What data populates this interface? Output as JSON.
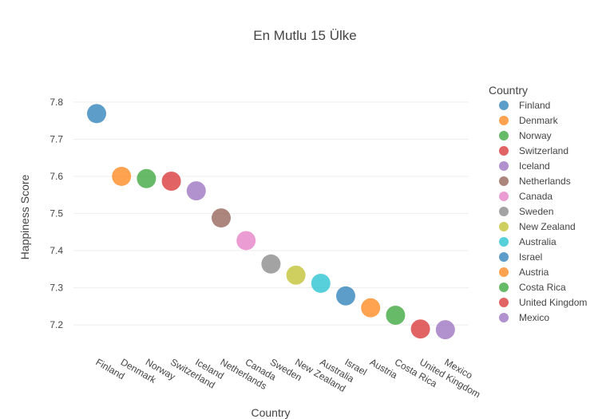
{
  "chart_data": {
    "type": "scatter",
    "title": "En Mutlu 15 Ülke",
    "xlabel": "Country",
    "ylabel": "Happiness Score",
    "legend_title": "Country",
    "legend_position": "right",
    "grid": true,
    "ylim": [
      7.14,
      7.86
    ],
    "yticks": [
      7.2,
      7.3,
      7.4,
      7.5,
      7.6,
      7.7,
      7.8
    ],
    "categories": [
      "Finland",
      "Denmark",
      "Norway",
      "Switzerland",
      "Iceland",
      "Netherlands",
      "Canada",
      "Sweden",
      "New Zealand",
      "Australia",
      "Israel",
      "Austria",
      "Costa Rica",
      "United Kingdom",
      "Mexico"
    ],
    "values": [
      7.769,
      7.6,
      7.594,
      7.587,
      7.561,
      7.488,
      7.427,
      7.364,
      7.334,
      7.312,
      7.278,
      7.246,
      7.226,
      7.189,
      7.187
    ],
    "colors": [
      "#1f77b4",
      "#ff7f0e",
      "#2ca02c",
      "#d62728",
      "#9467bd",
      "#8c564b",
      "#e377c2",
      "#7f7f7f",
      "#bcbd22",
      "#17becf",
      "#1f77b4",
      "#ff7f0e",
      "#2ca02c",
      "#d62728",
      "#9467bd"
    ]
  }
}
